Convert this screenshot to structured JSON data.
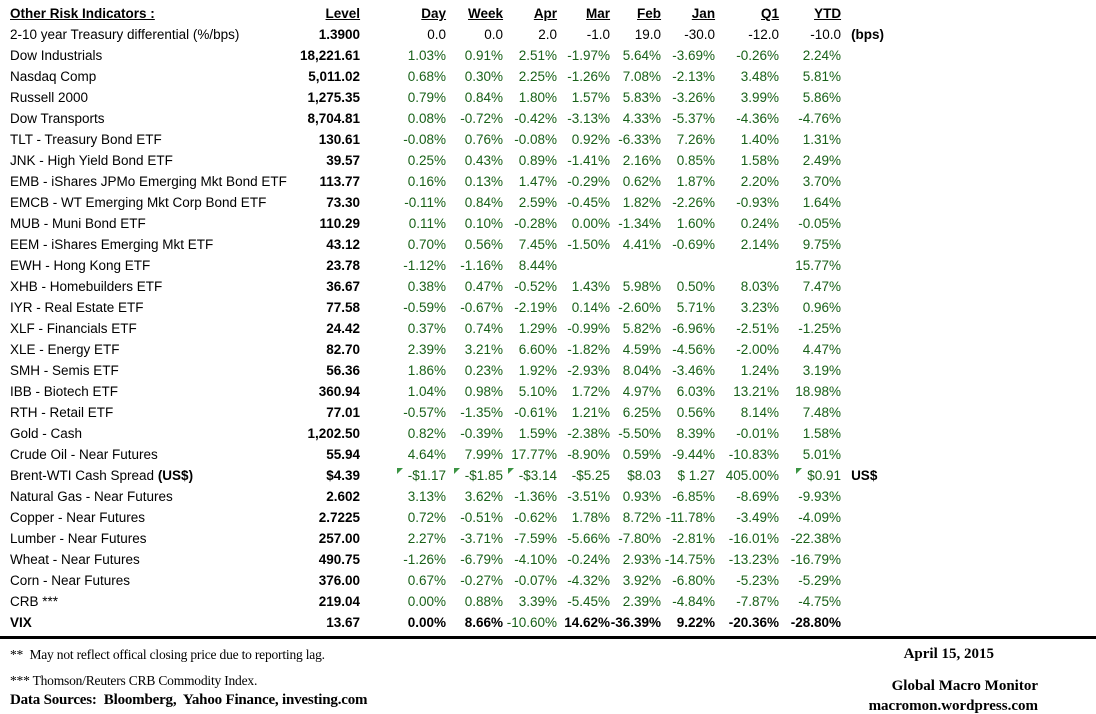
{
  "colors": {
    "value_green": "#186118",
    "flag_green": "#3b9443"
  },
  "table": {
    "title": "Other Risk Indicators :",
    "columns": [
      "Level",
      "Day",
      "Week",
      "Apr",
      "Mar",
      "Feb",
      "Jan",
      "Q1",
      "YTD"
    ],
    "rows": [
      {
        "name": "2-10 year Treasury differential (%/bps)",
        "level": "1.3900",
        "values": [
          "0.0",
          "0.0",
          "2.0",
          "-1.0",
          "19.0",
          "-30.0",
          "-12.0",
          "-10.0"
        ],
        "note": "(bps)",
        "black": true
      },
      {
        "name": "Dow Industrials",
        "level": "18,221.61",
        "values": [
          "1.03%",
          "0.91%",
          "2.51%",
          "-1.97%",
          "5.64%",
          "-3.69%",
          "-0.26%",
          "2.24%"
        ]
      },
      {
        "name": "Nasdaq Comp",
        "level": "5,011.02",
        "values": [
          "0.68%",
          "0.30%",
          "2.25%",
          "-1.26%",
          "7.08%",
          "-2.13%",
          "3.48%",
          "5.81%"
        ]
      },
      {
        "name": "Russell 2000",
        "level": "1,275.35",
        "values": [
          "0.79%",
          "0.84%",
          "1.80%",
          "1.57%",
          "5.83%",
          "-3.26%",
          "3.99%",
          "5.86%"
        ]
      },
      {
        "name": "Dow Transports",
        "level": "8,704.81",
        "values": [
          "0.08%",
          "-0.72%",
          "-0.42%",
          "-3.13%",
          "4.33%",
          "-5.37%",
          "-4.36%",
          "-4.76%"
        ]
      },
      {
        "name": "TLT - Treasury Bond ETF",
        "level": "130.61",
        "values": [
          "-0.08%",
          "0.76%",
          "-0.08%",
          "0.92%",
          "-6.33%",
          "7.26%",
          "1.40%",
          "1.31%"
        ]
      },
      {
        "name": "JNK - High Yield Bond ETF",
        "level": "39.57",
        "values": [
          "0.25%",
          "0.43%",
          "0.89%",
          "-1.41%",
          "2.16%",
          "0.85%",
          "1.58%",
          "2.49%"
        ]
      },
      {
        "name": "EMB - iShares JPMo Emerging Mkt Bond ETF",
        "level": "113.77",
        "values": [
          "0.16%",
          "0.13%",
          "1.47%",
          "-0.29%",
          "0.62%",
          "1.87%",
          "2.20%",
          "3.70%"
        ]
      },
      {
        "name": "EMCB - WT Emerging Mkt Corp Bond ETF",
        "level": "73.30",
        "values": [
          "-0.11%",
          "0.84%",
          "2.59%",
          "-0.45%",
          "1.82%",
          "-2.26%",
          "-0.93%",
          "1.64%"
        ]
      },
      {
        "name": "MUB - Muni Bond ETF",
        "level": "110.29",
        "values": [
          "0.11%",
          "0.10%",
          "-0.28%",
          "0.00%",
          "-1.34%",
          "1.60%",
          "0.24%",
          "-0.05%"
        ]
      },
      {
        "name": "EEM - iShares Emerging Mkt ETF",
        "level": "43.12",
        "values": [
          "0.70%",
          "0.56%",
          "7.45%",
          "-1.50%",
          "4.41%",
          "-0.69%",
          "2.14%",
          "9.75%"
        ]
      },
      {
        "name": "EWH - Hong Kong ETF",
        "level": "23.78",
        "values": [
          "-1.12%",
          "-1.16%",
          "8.44%",
          "",
          "",
          "",
          "",
          "15.77%"
        ]
      },
      {
        "name": "XHB - Homebuilders ETF",
        "level": "36.67",
        "values": [
          "0.38%",
          "0.47%",
          "-0.52%",
          "1.43%",
          "5.98%",
          "0.50%",
          "8.03%",
          "7.47%"
        ]
      },
      {
        "name": "IYR - Real Estate ETF",
        "level": "77.58",
        "values": [
          "-0.59%",
          "-0.67%",
          "-2.19%",
          "0.14%",
          "-2.60%",
          "5.71%",
          "3.23%",
          "0.96%"
        ]
      },
      {
        "name": "XLF - Financials ETF",
        "level": "24.42",
        "values": [
          "0.37%",
          "0.74%",
          "1.29%",
          "-0.99%",
          "5.82%",
          "-6.96%",
          "-2.51%",
          "-1.25%"
        ]
      },
      {
        "name": "XLE - Energy ETF",
        "level": "82.70",
        "values": [
          "2.39%",
          "3.21%",
          "6.60%",
          "-1.82%",
          "4.59%",
          "-4.56%",
          "-2.00%",
          "4.47%"
        ]
      },
      {
        "name": "SMH - Semis ETF",
        "level": "56.36",
        "values": [
          "1.86%",
          "0.23%",
          "1.92%",
          "-2.93%",
          "8.04%",
          "-3.46%",
          "1.24%",
          "3.19%"
        ]
      },
      {
        "name": "IBB - Biotech ETF",
        "level": "360.94",
        "values": [
          "1.04%",
          "0.98%",
          "5.10%",
          "1.72%",
          "4.97%",
          "6.03%",
          "13.21%",
          "18.98%"
        ]
      },
      {
        "name": "RTH - Retail ETF",
        "level": "77.01",
        "values": [
          "-0.57%",
          "-1.35%",
          "-0.61%",
          "1.21%",
          "6.25%",
          "0.56%",
          "8.14%",
          "7.48%"
        ]
      },
      {
        "name": "Gold - Cash",
        "level": "1,202.50",
        "values": [
          "0.82%",
          "-0.39%",
          "1.59%",
          "-2.38%",
          "-5.50%",
          "8.39%",
          "-0.01%",
          "1.58%"
        ]
      },
      {
        "name": "Crude Oil - Near Futures",
        "level": "55.94",
        "values": [
          "4.64%",
          "7.99%",
          "17.77%",
          "-8.90%",
          "0.59%",
          "-9.44%",
          "-10.83%",
          "5.01%"
        ]
      },
      {
        "name": "Brent-WTI Cash Spread ",
        "name_bold": "(US$)",
        "level": "$4.39",
        "values": [
          "-$1.17",
          "-$1.85",
          "-$3.14",
          "-$5.25",
          "$8.03",
          "$ 1.27",
          "405.00%",
          "$0.91"
        ],
        "note": "US$",
        "flags": [
          0,
          1,
          2,
          7
        ]
      },
      {
        "name": "Natural Gas - Near Futures",
        "level": "2.602",
        "values": [
          "3.13%",
          "3.62%",
          "-1.36%",
          "-3.51%",
          "0.93%",
          "-6.85%",
          "-8.69%",
          "-9.93%"
        ]
      },
      {
        "name": "Copper - Near Futures",
        "level": "2.7225",
        "values": [
          "0.72%",
          "-0.51%",
          "-0.62%",
          "1.78%",
          "8.72%",
          "-11.78%",
          "-3.49%",
          "-4.09%"
        ]
      },
      {
        "name": "Lumber - Near Futures",
        "level": "257.00",
        "values": [
          "2.27%",
          "-3.71%",
          "-7.59%",
          "-5.66%",
          "-7.80%",
          "-2.81%",
          "-16.01%",
          "-22.38%"
        ]
      },
      {
        "name": "Wheat - Near Futures",
        "level": "490.75",
        "values": [
          "-1.26%",
          "-6.79%",
          "-4.10%",
          "-0.24%",
          "2.93%",
          "-14.75%",
          "-13.23%",
          "-16.79%"
        ]
      },
      {
        "name": "Corn - Near Futures",
        "level": "376.00",
        "values": [
          "0.67%",
          "-0.27%",
          "-0.07%",
          "-4.32%",
          "3.92%",
          "-6.80%",
          "-5.23%",
          "-5.29%"
        ]
      },
      {
        "name": "CRB ***",
        "level": "219.04",
        "values": [
          "0.00%",
          "0.88%",
          "3.39%",
          "-5.45%",
          "2.39%",
          "-4.84%",
          "-7.87%",
          "-4.75%"
        ]
      },
      {
        "name": "VIX",
        "level": "13.67",
        "bold": true,
        "regular": [
          2
        ],
        "values": [
          "0.00%",
          "8.66%",
          "-10.60%",
          "14.62%",
          "-36.39%",
          "9.22%",
          "-20.36%",
          "-28.80%"
        ]
      }
    ]
  },
  "footer": {
    "footnote1": "**  May not reflect offical closing price due to reporting lag.",
    "footnote2": "*** Thomson/Reuters CRB Commodity Index.",
    "sources": "Data Sources:  Bloomberg,  Yahoo Finance, investing.com",
    "date": "April 15, 2015",
    "brand": "Global Macro Monitor",
    "site": "macromon.wordpress.com"
  }
}
